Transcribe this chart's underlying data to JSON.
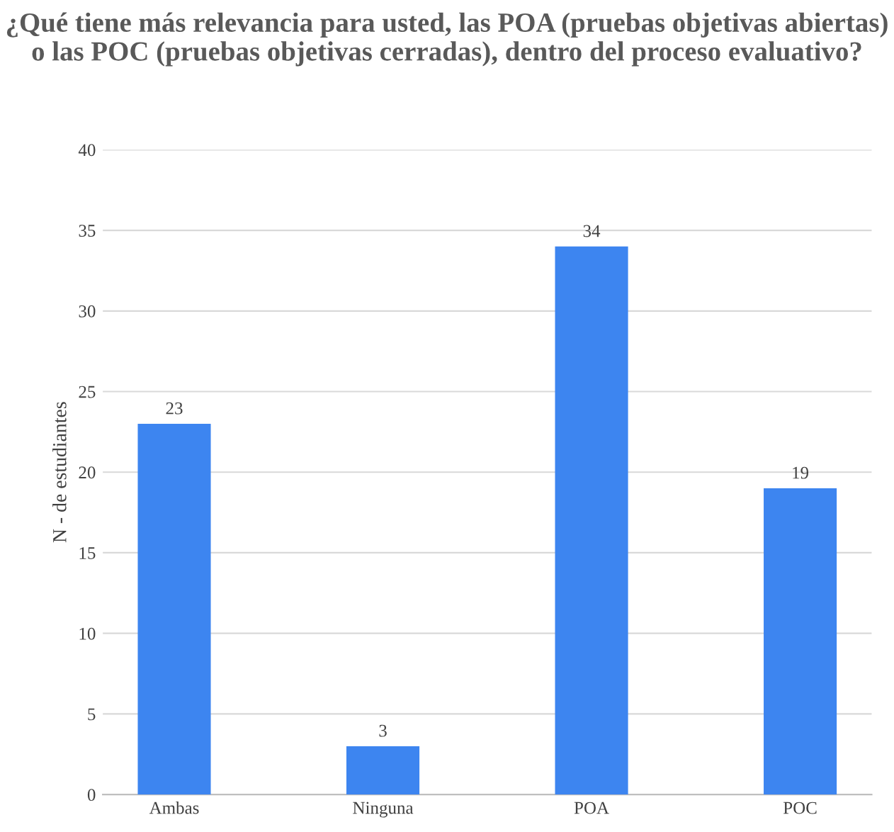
{
  "chart_data": {
    "type": "bar",
    "title": "¿Qué tiene más relevancia para usted, las POA (pruebas objetivas abiertas) o las POC (pruebas objetivas cerradas), dentro del proceso evaluativo?",
    "ylabel": "N - de estudiantes",
    "categories": [
      "Ambas",
      "Ninguna",
      "POA",
      "POC"
    ],
    "values": [
      23,
      3,
      34,
      19
    ],
    "color": "#3d85f0",
    "ylim": [
      0,
      40
    ],
    "yticks": [
      0,
      5,
      10,
      15,
      20,
      25,
      30,
      35,
      40
    ],
    "grid": "y",
    "data_labels": true
  }
}
